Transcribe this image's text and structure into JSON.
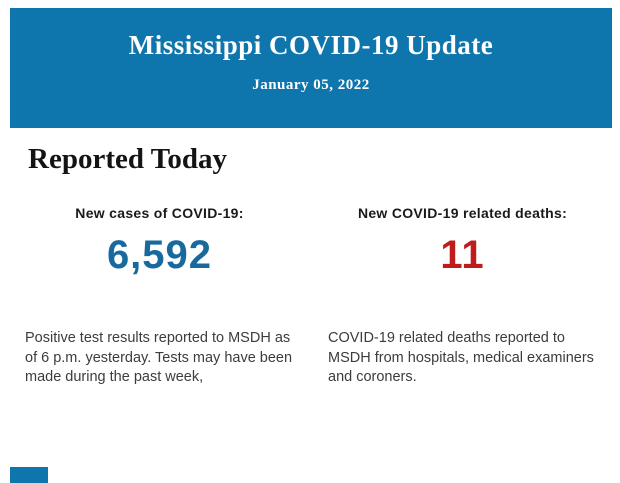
{
  "colors": {
    "header_bg": "#0e76ad",
    "header_text": "#ffffff",
    "heading_text": "#141414",
    "label_text": "#1a1a1a",
    "cases_value": "#17699e",
    "deaths_value": "#bf1c1c",
    "body_text": "#3c3c3c",
    "page_bg": "#fdfdfd",
    "content_bg": "#ffffff"
  },
  "header": {
    "title": "Mississippi COVID-19 Update",
    "date": "January 05, 2022"
  },
  "main": {
    "section_title": "Reported Today",
    "stats": [
      {
        "label": "New cases of COVID-19:",
        "value": "6,592",
        "description": "Positive test results reported to MSDH as of 6 p.m. yesterday. Tests may have been made during the past week,"
      },
      {
        "label": "New COVID-19 related deaths:",
        "value": "11",
        "description": "COVID-19 related deaths reported to MSDH from hospitals, medical examiners and coroners."
      }
    ]
  }
}
